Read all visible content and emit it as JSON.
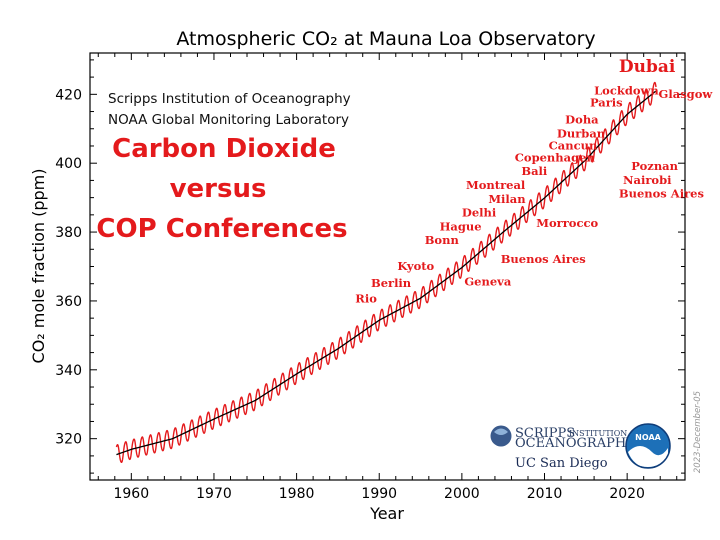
{
  "chart_data": {
    "type": "line",
    "title": "Atmospheric CO₂ at Mauna Loa Observatory",
    "xlabel": "Year",
    "ylabel": "CO₂ mole fraction (ppm)",
    "xlim": [
      1955,
      2027
    ],
    "ylim": [
      308,
      432
    ],
    "x_ticks": [
      1960,
      1970,
      1980,
      1990,
      2000,
      2010,
      2020
    ],
    "y_ticks": [
      320,
      340,
      360,
      380,
      400,
      420
    ],
    "grid": false,
    "series": [
      {
        "kind": "monthly",
        "color": "#e41a1c",
        "seasonal_amplitude_ppm": 3.2,
        "x": [
          1958,
          1960,
          1965,
          1970,
          1975,
          1980,
          1985,
          1990,
          1995,
          2000,
          2005,
          2010,
          2015,
          2020,
          2023.5
        ],
        "y": [
          315.2,
          316.9,
          320.0,
          325.7,
          331.1,
          338.8,
          346.1,
          354.4,
          360.8,
          369.7,
          380.0,
          389.9,
          401.0,
          414.2,
          421.0
        ]
      },
      {
        "kind": "trend",
        "color": "#000000",
        "x": [
          1958,
          1960,
          1965,
          1970,
          1975,
          1980,
          1985,
          1990,
          1995,
          2000,
          2005,
          2010,
          2015,
          2020,
          2023.5
        ],
        "y": [
          315.2,
          316.9,
          320.0,
          325.7,
          331.1,
          338.8,
          346.1,
          354.4,
          360.8,
          369.7,
          380.0,
          389.9,
          401.0,
          414.2,
          421.0
        ]
      }
    ],
    "annotations": {
      "institutions": [
        "Scripps Institution of Oceanography",
        "NOAA Global Monitoring Laboratory"
      ],
      "headline": [
        "Carbon Dioxide",
        "versus",
        "COP Conferences"
      ],
      "date_stamp": "2023-December-05",
      "conferences": [
        {
          "label": "Dubai",
          "x": 2019.0,
          "y": 426.5,
          "size": "large"
        },
        {
          "label": "Glasgow",
          "x": 2023.8,
          "y": 419.0
        },
        {
          "label": "Lockdown",
          "x": 2016.0,
          "y": 420.0
        },
        {
          "label": "Paris",
          "x": 2015.5,
          "y": 416.5
        },
        {
          "label": "Doha",
          "x": 2012.5,
          "y": 411.5
        },
        {
          "label": "Durban",
          "x": 2011.5,
          "y": 407.5
        },
        {
          "label": "Cancun",
          "x": 2010.5,
          "y": 404.0
        },
        {
          "label": "Copenhagen",
          "x": 2006.4,
          "y": 400.5
        },
        {
          "label": "Bali",
          "x": 2007.2,
          "y": 396.5
        },
        {
          "label": "Montreal",
          "x": 2000.5,
          "y": 392.5
        },
        {
          "label": "Milan",
          "x": 2003.2,
          "y": 388.5
        },
        {
          "label": "Delhi",
          "x": 2000.0,
          "y": 384.5
        },
        {
          "label": "Hague",
          "x": 1997.3,
          "y": 380.5
        },
        {
          "label": "Bonn",
          "x": 1995.5,
          "y": 376.5
        },
        {
          "label": "Kyoto",
          "x": 1992.2,
          "y": 369.0
        },
        {
          "label": "Berlin",
          "x": 1989.0,
          "y": 364.0
        },
        {
          "label": "Rio",
          "x": 1987.1,
          "y": 359.5
        },
        {
          "label": "Geneva",
          "x": 2000.3,
          "y": 364.5
        },
        {
          "label": "Buenos Aires",
          "x": 2004.7,
          "y": 371.0
        },
        {
          "label": "Morrocco",
          "x": 2009.0,
          "y": 381.5
        },
        {
          "label": "Poznan",
          "x": 2020.5,
          "y": 398.0
        },
        {
          "label": "Nairobi",
          "x": 2019.5,
          "y": 394.0
        },
        {
          "label": "Buenos Aires",
          "x": 2019.0,
          "y": 390.0
        }
      ]
    },
    "logos": {
      "scripps": [
        "SCRIPPS",
        "INSTITUTION OF",
        "OCEANOGRAPHY"
      ],
      "ucsd": "UC San Diego",
      "noaa": "NOAA"
    }
  }
}
